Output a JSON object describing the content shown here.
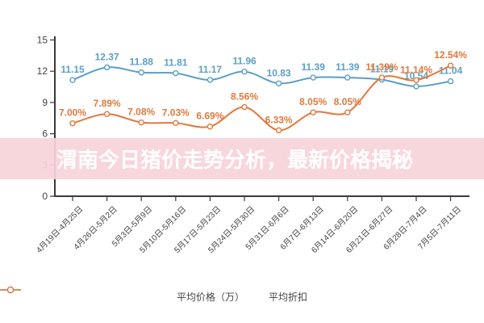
{
  "banner": {
    "title": "渭南今日猪价走势分析，最新价格揭秘",
    "bg": "#F6D3D9",
    "text_color": "#FFFFFF"
  },
  "colors": {
    "axis": "#3A3A3A",
    "tick_label": "#444444",
    "background": "#FFFFFF",
    "price_series": "#5A9FC8",
    "discount_series": "#E0793D"
  },
  "chart_data": {
    "type": "line",
    "title": "",
    "xlabel": "",
    "ylabel": "",
    "grid": false,
    "legend_position": "bottom",
    "ylim": [
      0,
      15
    ],
    "yticks": [
      0,
      3,
      6,
      9,
      12,
      15
    ],
    "ytick_labels": [
      "0",
      "3",
      "6",
      "9",
      "12",
      "15"
    ],
    "categories": [
      "4月19日-4月25日",
      "4月26日-5月2日",
      "5月3日-5月9日",
      "5月10日-5月16日",
      "5月17日-5月23日",
      "5月24日-5月30日",
      "5月31日-6月6日",
      "6月7日-6月13日",
      "6月14日-6月20日",
      "6月21日-6月27日",
      "6月28日-7月4日",
      "7月5日-7月11日"
    ],
    "series": [
      {
        "name": "平均价格（万）",
        "color": "#5A9FC8",
        "values": [
          11.15,
          12.37,
          11.88,
          11.81,
          11.17,
          11.96,
          10.83,
          11.39,
          11.39,
          11.19,
          10.54,
          11.04
        ],
        "labels": [
          "11.15",
          "12.37",
          "11.88",
          "11.81",
          "11.17",
          "11.96",
          "10.83",
          "11.39",
          "11.39",
          "11.19",
          "10.54",
          "11.04"
        ]
      },
      {
        "name": "平均折扣",
        "color": "#E0793D",
        "values": [
          7.0,
          7.89,
          7.08,
          7.03,
          6.69,
          8.56,
          6.33,
          8.05,
          8.05,
          11.39,
          11.14,
          12.54
        ],
        "labels": [
          "7.00%",
          "7.89%",
          "7.08%",
          "7.03%",
          "6.69%",
          "8.56%",
          "6.33%",
          "8.05%",
          "8.05%",
          "11.39%",
          "11.14%",
          "12.54%"
        ]
      }
    ]
  }
}
